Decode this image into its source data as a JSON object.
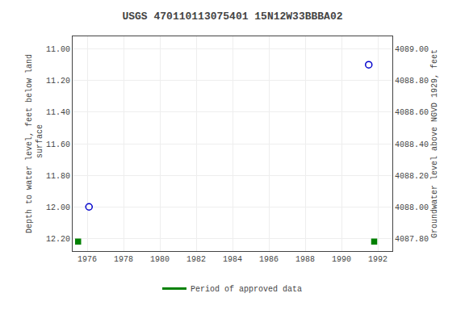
{
  "chart_data": {
    "type": "scatter",
    "title": "USGS 470110113075401 15N12W33BBBA02",
    "y_label": "Depth to water level, feet below land\n surface",
    "y2_label": "Groundwater level above NGVD 1929, feet",
    "xlim": [
      1975.2,
      1992.8
    ],
    "xticks": [
      1976,
      1978,
      1980,
      1982,
      1984,
      1986,
      1988,
      1990,
      1992
    ],
    "ylim": [
      12.28,
      10.92
    ],
    "yticks": [
      {
        "value": 11.0,
        "label": "11.00"
      },
      {
        "value": 11.2,
        "label": "11.20"
      },
      {
        "value": 11.4,
        "label": "11.40"
      },
      {
        "value": 11.6,
        "label": "11.60"
      },
      {
        "value": 11.8,
        "label": "11.80"
      },
      {
        "value": 12.0,
        "label": "12.00"
      },
      {
        "value": 12.2,
        "label": "12.20"
      }
    ],
    "y2lim": [
      4087.72,
      4089.08
    ],
    "y2ticks": [
      {
        "value": 4089.0,
        "label": "4089.00"
      },
      {
        "value": 4088.8,
        "label": "4088.80"
      },
      {
        "value": 4088.6,
        "label": "4088.60"
      },
      {
        "value": 4088.4,
        "label": "4088.40"
      },
      {
        "value": 4088.2,
        "label": "4088.20"
      },
      {
        "value": 4088.0,
        "label": "4088.00"
      },
      {
        "value": 4087.8,
        "label": "4087.80"
      }
    ],
    "grid": true,
    "legend": "bottom",
    "series": [
      {
        "x": [
          1976.1,
          1991.5
        ],
        "values": [
          12.0,
          11.1
        ],
        "color": "#0000cc",
        "marker": "circle-open"
      },
      {
        "name": "Period of approved data",
        "x": [
          1975.5,
          1991.8
        ],
        "values": [
          12.22,
          12.22
        ],
        "color": "#008000",
        "marker": "square"
      }
    ]
  }
}
